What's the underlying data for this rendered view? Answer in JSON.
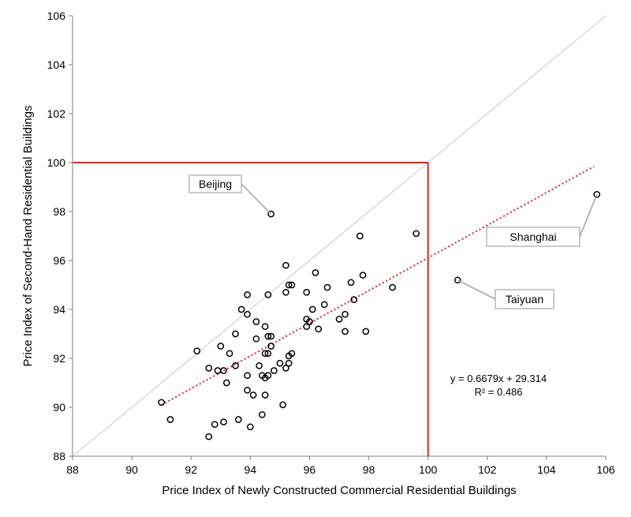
{
  "chart_data": {
    "type": "scatter",
    "xlabel": "Price Index of Newly Constructed Commercial Residential Buildings",
    "ylabel": "Price Index of Second-Hand Residential Buildings",
    "xlim": [
      88,
      106
    ],
    "ylim": [
      88,
      106
    ],
    "xticks": [
      "88",
      "90",
      "92",
      "94",
      "96",
      "98",
      "100",
      "102",
      "104",
      "106"
    ],
    "yticks": [
      "88",
      "90",
      "92",
      "94",
      "96",
      "98",
      "100",
      "102",
      "104",
      "106"
    ],
    "grid": false,
    "points": [
      {
        "x": 91.0,
        "y": 90.2
      },
      {
        "x": 91.3,
        "y": 89.5
      },
      {
        "x": 92.2,
        "y": 92.3
      },
      {
        "x": 92.6,
        "y": 91.6
      },
      {
        "x": 92.6,
        "y": 88.8
      },
      {
        "x": 92.8,
        "y": 89.3
      },
      {
        "x": 92.9,
        "y": 91.5
      },
      {
        "x": 93.0,
        "y": 92.5
      },
      {
        "x": 93.1,
        "y": 89.4
      },
      {
        "x": 93.1,
        "y": 91.5
      },
      {
        "x": 93.2,
        "y": 91.0
      },
      {
        "x": 93.3,
        "y": 92.2
      },
      {
        "x": 93.5,
        "y": 93.0
      },
      {
        "x": 93.5,
        "y": 91.7
      },
      {
        "x": 93.6,
        "y": 89.5
      },
      {
        "x": 93.7,
        "y": 94.0
      },
      {
        "x": 93.9,
        "y": 94.6
      },
      {
        "x": 93.9,
        "y": 93.8
      },
      {
        "x": 93.9,
        "y": 91.3
      },
      {
        "x": 93.9,
        "y": 90.7
      },
      {
        "x": 94.0,
        "y": 89.2
      },
      {
        "x": 94.1,
        "y": 90.5
      },
      {
        "x": 94.2,
        "y": 93.5
      },
      {
        "x": 94.2,
        "y": 92.8
      },
      {
        "x": 94.3,
        "y": 91.7
      },
      {
        "x": 94.4,
        "y": 91.3
      },
      {
        "x": 94.4,
        "y": 89.7
      },
      {
        "x": 94.5,
        "y": 93.3
      },
      {
        "x": 94.5,
        "y": 92.2
      },
      {
        "x": 94.5,
        "y": 91.2
      },
      {
        "x": 94.5,
        "y": 90.5
      },
      {
        "x": 94.6,
        "y": 94.6
      },
      {
        "x": 94.6,
        "y": 92.9
      },
      {
        "x": 94.6,
        "y": 92.2
      },
      {
        "x": 94.6,
        "y": 91.3
      },
      {
        "x": 94.7,
        "y": 92.9
      },
      {
        "x": 94.7,
        "y": 92.5
      },
      {
        "x": 94.8,
        "y": 91.5
      },
      {
        "x": 95.0,
        "y": 91.8
      },
      {
        "x": 95.1,
        "y": 90.1
      },
      {
        "x": 95.2,
        "y": 95.8
      },
      {
        "x": 95.2,
        "y": 94.7
      },
      {
        "x": 95.2,
        "y": 91.6
      },
      {
        "x": 95.3,
        "y": 95.0
      },
      {
        "x": 95.3,
        "y": 92.1
      },
      {
        "x": 95.3,
        "y": 91.8
      },
      {
        "x": 95.4,
        "y": 95.0
      },
      {
        "x": 95.4,
        "y": 92.2
      },
      {
        "x": 95.9,
        "y": 94.7
      },
      {
        "x": 95.9,
        "y": 93.6
      },
      {
        "x": 95.9,
        "y": 93.3
      },
      {
        "x": 96.0,
        "y": 93.5
      },
      {
        "x": 96.1,
        "y": 94.0
      },
      {
        "x": 96.2,
        "y": 95.5
      },
      {
        "x": 96.3,
        "y": 93.2
      },
      {
        "x": 96.5,
        "y": 94.2
      },
      {
        "x": 96.6,
        "y": 94.9
      },
      {
        "x": 97.0,
        "y": 93.6
      },
      {
        "x": 97.2,
        "y": 93.8
      },
      {
        "x": 97.2,
        "y": 93.1
      },
      {
        "x": 97.4,
        "y": 95.1
      },
      {
        "x": 97.5,
        "y": 94.4
      },
      {
        "x": 97.7,
        "y": 97.0
      },
      {
        "x": 97.8,
        "y": 95.4
      },
      {
        "x": 97.9,
        "y": 93.1
      },
      {
        "x": 98.8,
        "y": 94.9
      },
      {
        "x": 99.6,
        "y": 97.1
      },
      {
        "x": 94.7,
        "y": 97.9
      },
      {
        "x": 105.7,
        "y": 98.7
      },
      {
        "x": 101.0,
        "y": 95.2
      }
    ],
    "trendline": {
      "slope": 0.6679,
      "intercept": 29.314,
      "x_range": [
        91.0,
        105.6
      ],
      "color": "#e0241b",
      "style": "dotted",
      "equation": "y = 0.6679x + 29.314",
      "r2": "R² = 0.486"
    },
    "diagonal": {
      "from": [
        88,
        88
      ],
      "to": [
        106,
        106
      ],
      "color": "#c8c8c8"
    },
    "reference_lines": {
      "x": 100,
      "y": 100,
      "color": "#e0241b"
    },
    "annotations": [
      {
        "label": "Beijing",
        "x": 94.7,
        "y": 97.9
      },
      {
        "label": "Shanghai",
        "x": 105.7,
        "y": 98.7
      },
      {
        "label": "Taiyuan",
        "x": 101.0,
        "y": 95.2
      }
    ],
    "colors": {
      "markers": "#000000",
      "axis": "#7f7f7f"
    }
  }
}
